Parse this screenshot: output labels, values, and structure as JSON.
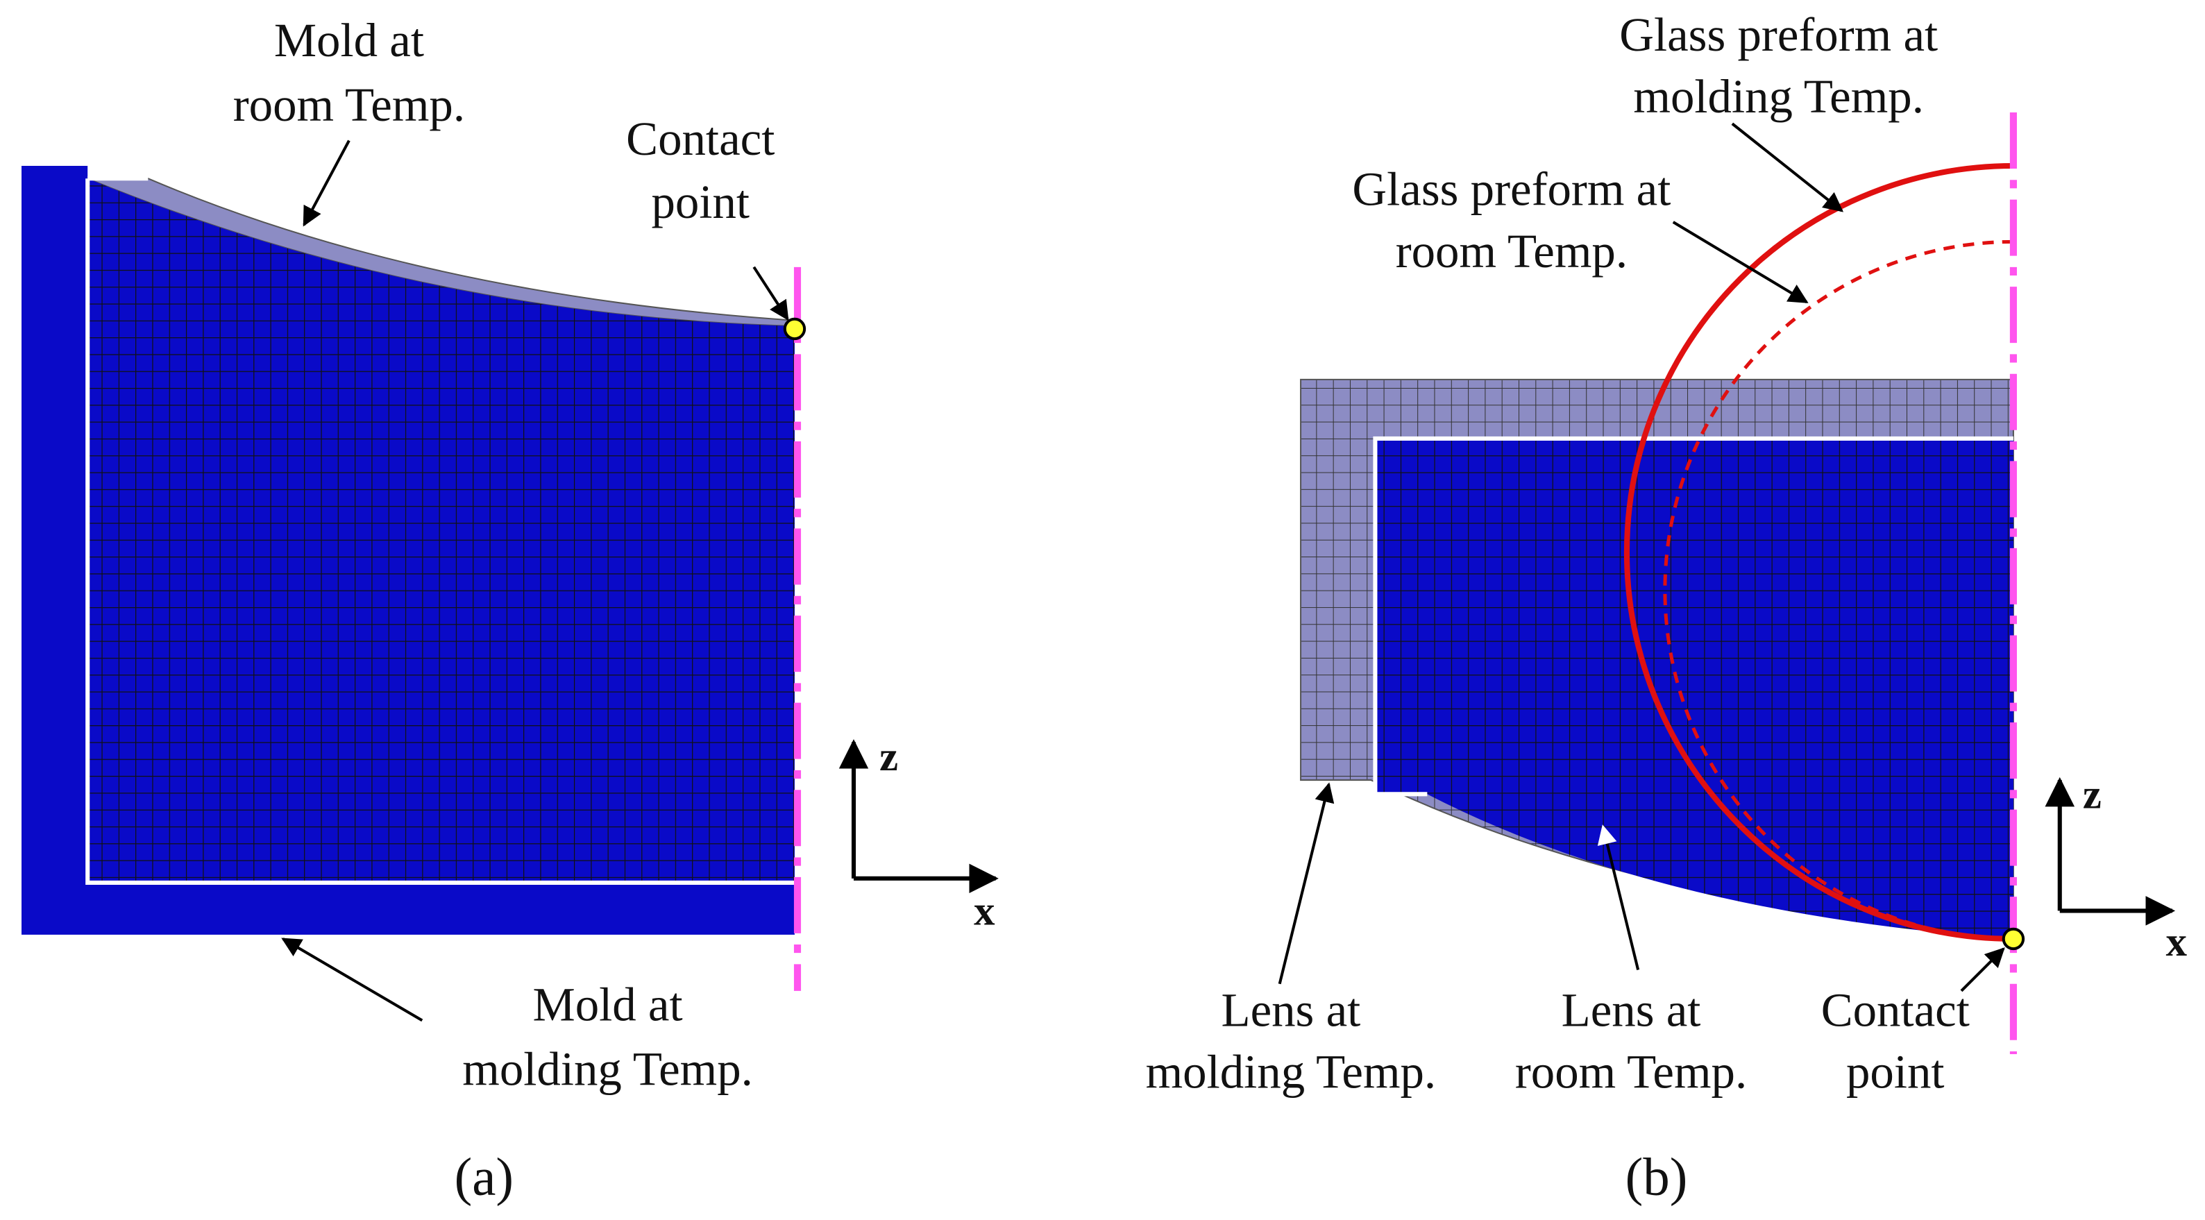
{
  "panels": [
    {
      "labels": {
        "mold_room": [
          "Mold at",
          "room Temp."
        ],
        "contact": [
          "Contact",
          "point"
        ],
        "mold_molding": [
          "Mold at",
          "molding Temp."
        ]
      },
      "axes": {
        "z": "z",
        "x": "x"
      },
      "caption": "(a)"
    },
    {
      "labels": {
        "preform_molding": [
          "Glass preform at",
          "molding Temp."
        ],
        "preform_room": [
          "Glass preform at",
          "room Temp."
        ],
        "lens_molding": [
          "Lens at",
          "molding Temp."
        ],
        "lens_room": [
          "Lens at",
          "room Temp."
        ],
        "contact": [
          "Contact",
          "point"
        ]
      },
      "axes": {
        "z": "z",
        "x": "x"
      },
      "caption": "(b)"
    }
  ]
}
